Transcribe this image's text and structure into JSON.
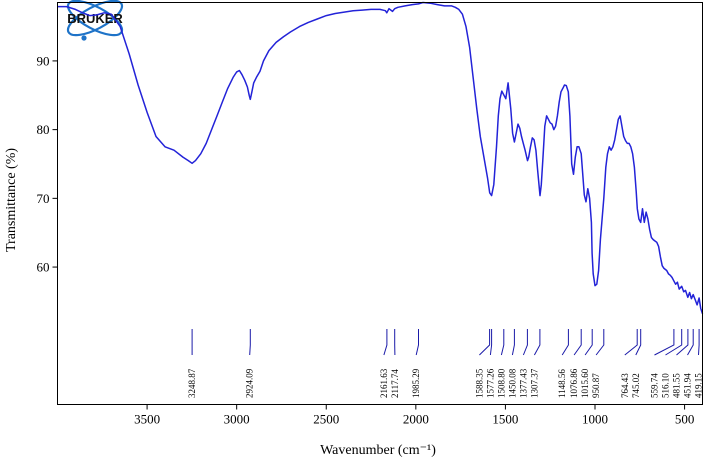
{
  "logo": {
    "text": "BRUKER",
    "colors": {
      "orbit": "#1e73c8",
      "text": "#111111"
    }
  },
  "chart_data": {
    "type": "line",
    "title": "",
    "xlabel": "Wavenumber (cm⁻¹)",
    "ylabel": "Transmittance (%)",
    "xlim": [
      4000,
      400
    ],
    "x_reversed": true,
    "ylim": [
      40,
      98.5
    ],
    "x_ticks": [
      3500,
      3000,
      2500,
      2000,
      1500,
      1000,
      500
    ],
    "y_ticks": [
      60,
      70,
      80,
      90
    ],
    "grid": false,
    "line_color": "#2323d8",
    "series": [
      {
        "x": [
          4000,
          3950,
          3900,
          3860,
          3820,
          3780,
          3740,
          3700,
          3650,
          3600,
          3550,
          3500,
          3450,
          3400,
          3350,
          3300,
          3270,
          3249,
          3230,
          3200,
          3170,
          3140,
          3110,
          3080,
          3050,
          3020,
          3000,
          2985,
          2970,
          2955,
          2940,
          2930,
          2924,
          2915,
          2905,
          2890,
          2870,
          2850,
          2820,
          2780,
          2740,
          2700,
          2650,
          2600,
          2550,
          2500,
          2450,
          2400,
          2350,
          2300,
          2250,
          2200,
          2170,
          2162,
          2150,
          2130,
          2118,
          2100,
          2060,
          2020,
          1985,
          1960,
          1920,
          1880,
          1840,
          1800,
          1780,
          1760,
          1740,
          1720,
          1700,
          1680,
          1660,
          1640,
          1620,
          1600,
          1588,
          1577,
          1565,
          1550,
          1540,
          1530,
          1520,
          1508,
          1498,
          1485,
          1470,
          1460,
          1450,
          1440,
          1430,
          1420,
          1410,
          1400,
          1390,
          1377,
          1370,
          1360,
          1350,
          1340,
          1330,
          1320,
          1307,
          1300,
          1290,
          1280,
          1270,
          1260,
          1250,
          1240,
          1230,
          1220,
          1210,
          1200,
          1190,
          1180,
          1170,
          1160,
          1149,
          1140,
          1130,
          1120,
          1110,
          1100,
          1090,
          1077,
          1070,
          1060,
          1050,
          1040,
          1030,
          1020,
          1016,
          1010,
          1000,
          990,
          980,
          970,
          951,
          940,
          930,
          920,
          910,
          900,
          890,
          880,
          870,
          860,
          850,
          840,
          830,
          820,
          810,
          800,
          790,
          780,
          770,
          764,
          755,
          745,
          735,
          725,
          715,
          705,
          695,
          685,
          675,
          665,
          655,
          645,
          635,
          625,
          615,
          600,
          590,
          580,
          570,
          560,
          550,
          540,
          530,
          516,
          505,
          495,
          482,
          472,
          462,
          452,
          440,
          430,
          419,
          410,
          400
        ],
        "y": [
          97.9,
          97.9,
          97.5,
          97.0,
          96.6,
          96.7,
          97.0,
          96.8,
          95.0,
          91.0,
          86.5,
          82.5,
          79.0,
          77.5,
          77.0,
          76.0,
          75.5,
          75.1,
          75.5,
          76.5,
          78.0,
          80.0,
          82.0,
          84.0,
          86.0,
          87.6,
          88.4,
          88.6,
          88.0,
          87.2,
          86.2,
          85.0,
          84.4,
          85.5,
          86.8,
          87.6,
          88.5,
          90.0,
          91.5,
          92.7,
          93.5,
          94.2,
          95.0,
          95.6,
          96.1,
          96.6,
          96.9,
          97.1,
          97.3,
          97.4,
          97.5,
          97.5,
          97.3,
          97.0,
          97.6,
          97.2,
          97.6,
          97.8,
          98.0,
          98.2,
          98.3,
          98.5,
          98.4,
          98.2,
          98.0,
          98.0,
          97.8,
          97.5,
          96.8,
          95.0,
          92.0,
          87.5,
          83.0,
          79.0,
          76.0,
          73.0,
          70.8,
          70.4,
          72.0,
          77.5,
          82.0,
          84.5,
          85.6,
          85.0,
          84.5,
          86.8,
          83.0,
          79.5,
          78.2,
          79.5,
          80.8,
          80.2,
          79.0,
          78.0,
          77.0,
          75.5,
          76.0,
          77.5,
          78.8,
          78.5,
          77.0,
          74.0,
          70.4,
          72.0,
          76.0,
          80.5,
          82.0,
          81.5,
          81.0,
          80.8,
          80.0,
          80.5,
          82.0,
          84.0,
          85.5,
          86.0,
          86.5,
          86.4,
          85.5,
          82.0,
          75.0,
          73.5,
          76.0,
          77.5,
          77.5,
          76.5,
          74.0,
          70.5,
          69.5,
          71.4,
          70.0,
          66.5,
          62.0,
          59.0,
          57.3,
          57.5,
          59.5,
          64.0,
          70.0,
          74.5,
          76.5,
          77.5,
          77.0,
          77.5,
          78.5,
          80.0,
          81.5,
          82.0,
          80.5,
          79.0,
          78.4,
          78.0,
          78.0,
          77.5,
          76.5,
          74.5,
          71.0,
          68.5,
          67.0,
          66.5,
          68.5,
          66.5,
          68.0,
          67.0,
          65.5,
          64.3,
          64.0,
          63.8,
          63.6,
          63.0,
          61.5,
          60.2,
          59.8,
          59.5,
          59.0,
          58.8,
          58.5,
          58.0,
          57.5,
          57.8,
          56.8,
          57.2,
          56.4,
          56.6,
          55.6,
          56.3,
          55.4,
          56.0,
          55.2,
          54.5,
          55.5,
          54.0,
          53.2
        ]
      }
    ],
    "peaks": [
      {
        "x": 3248.87,
        "label": "3248.87"
      },
      {
        "x": 2924.09,
        "label": "2924.09"
      },
      {
        "x": 2161.63,
        "label": "2161.63"
      },
      {
        "x": 2117.74,
        "label": "2117.74"
      },
      {
        "x": 1985.29,
        "label": "1985.29"
      },
      {
        "x": 1588.35,
        "label": "1588.35"
      },
      {
        "x": 1577.26,
        "label": "1577.26"
      },
      {
        "x": 1508.8,
        "label": "1508.80"
      },
      {
        "x": 1450.08,
        "label": "1450.08"
      },
      {
        "x": 1377.43,
        "label": "1377.43"
      },
      {
        "x": 1307.37,
        "label": "1307.37"
      },
      {
        "x": 1148.56,
        "label": "1148.56"
      },
      {
        "x": 1076.86,
        "label": "1076.86"
      },
      {
        "x": 1015.6,
        "label": "1015.60"
      },
      {
        "x": 950.87,
        "label": "950.87"
      },
      {
        "x": 764.43,
        "label": "764.43"
      },
      {
        "x": 745.02,
        "label": "745.02"
      },
      {
        "x": 559.74,
        "label": "559.74"
      },
      {
        "x": 516.1,
        "label": "516.10"
      },
      {
        "x": 481.55,
        "label": "481.55"
      },
      {
        "x": 451.94,
        "label": "451.94"
      },
      {
        "x": 419.15,
        "label": "419.15"
      }
    ]
  }
}
